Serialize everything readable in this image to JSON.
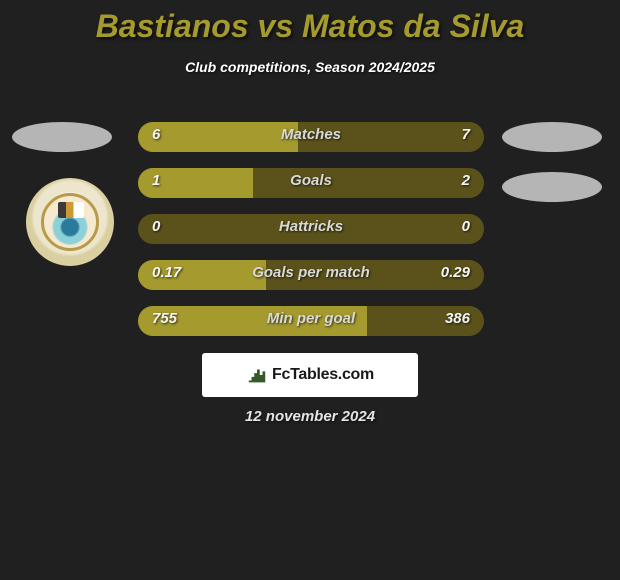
{
  "title": {
    "color": "#a59a2e",
    "player1": "Bastianos",
    "vs": "vs",
    "player2": "Matos da Silva",
    "fontsize": 32
  },
  "subtitle": "Club competitions, Season 2024/2025",
  "background_color": "#202020",
  "bars": {
    "track_color": "#5a521a",
    "fill_color": "#a59a2e",
    "label_color": "#d9d9d9",
    "value_color": "#f5f5f5",
    "rows": [
      {
        "label": "Matches",
        "left": "6",
        "right": "7",
        "xmax": 13,
        "xleft": 6,
        "xright": 7
      },
      {
        "label": "Goals",
        "left": "1",
        "right": "2",
        "xmax": 3,
        "xleft": 1,
        "xright": 2
      },
      {
        "label": "Hattricks",
        "left": "0",
        "right": "0",
        "xmax": 1,
        "xleft": 0,
        "xright": 0
      },
      {
        "label": "Goals per match",
        "left": "0.17",
        "right": "0.29",
        "xmax": 0.46,
        "xleft": 0.17,
        "xright": 0.29
      },
      {
        "label": "Min per goal",
        "left": "755",
        "right": "386",
        "xmax": 1141,
        "xleft": 755,
        "xright": 386
      }
    ]
  },
  "brand": {
    "text": "FcTables.com",
    "bg": "#ffffff",
    "text_color": "#1a1a1a",
    "icon_color": "#355a2a"
  },
  "date": "12 november 2024",
  "avatars": {
    "placeholder_color": "#b5b5b5"
  }
}
